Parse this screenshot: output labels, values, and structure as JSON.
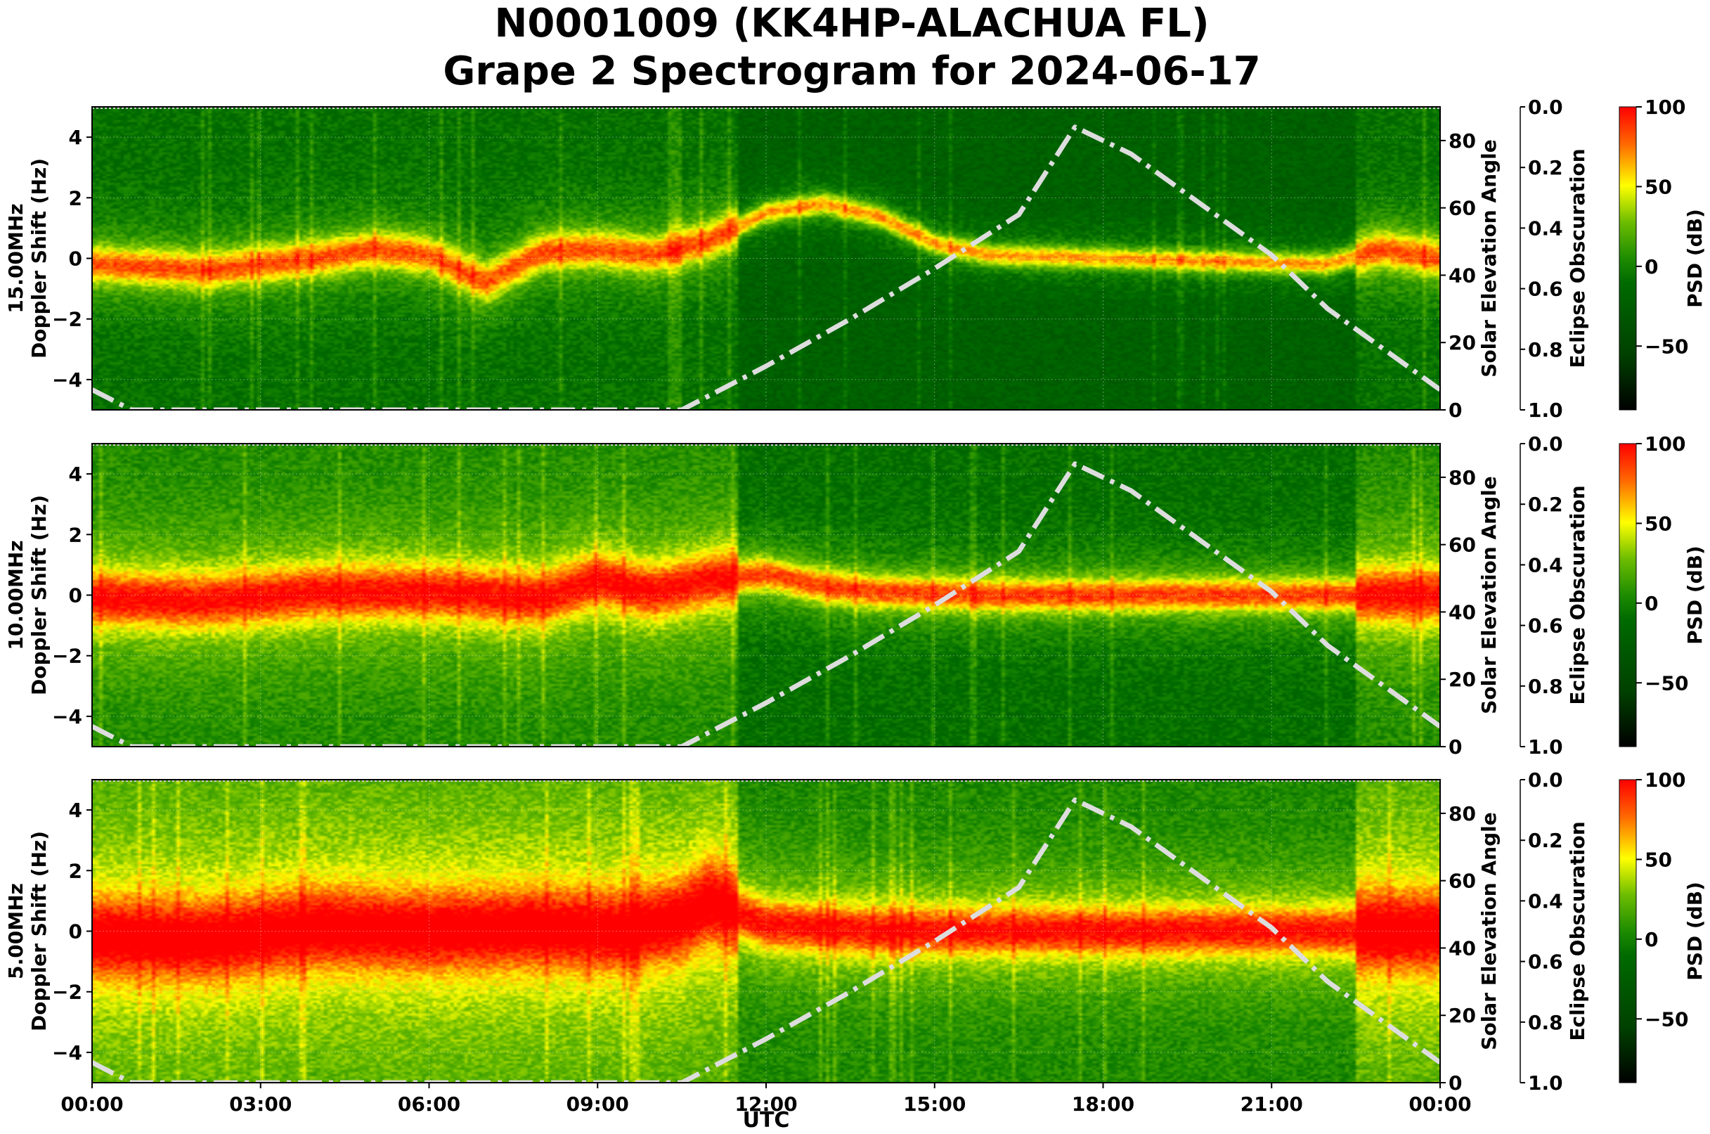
{
  "chart_data": {
    "type": "heatmap",
    "title_line1": "N0001009 (KK4HP-ALACHUA FL)",
    "title_line2": "Grape 2 Spectrogram for 2024-06-17",
    "xlabel": "UTC",
    "x_ticks": [
      "00:00",
      "03:00",
      "06:00",
      "09:00",
      "12:00",
      "15:00",
      "18:00",
      "21:00",
      "00:00"
    ],
    "x_range_hours": [
      0,
      24
    ],
    "doppler_range_hz": [
      -5,
      5
    ],
    "doppler_ticks": [
      4,
      2,
      0,
      -2,
      -4
    ],
    "doppler_tick_labels": [
      "4",
      "2",
      "0",
      "−2",
      "−4"
    ],
    "solar_ylabel": "Solar Elevation Angle",
    "solar_range_deg": [
      0,
      90
    ],
    "solar_ticks": [
      0,
      20,
      40,
      60,
      80
    ],
    "solar_tick_labels": [
      "0",
      "20",
      "40",
      "60",
      "80"
    ],
    "eclipse_label": "Eclipse Obscuration",
    "eclipse_ticks": [
      0.0,
      0.2,
      0.4,
      0.6,
      0.8,
      1.0
    ],
    "eclipse_tick_labels": [
      "0.0",
      "0.2",
      "0.4",
      "0.6",
      "0.8",
      "1.0"
    ],
    "psd_label": "PSD (dB)",
    "psd_range_db": [
      -90,
      100
    ],
    "psd_ticks": [
      100,
      50,
      0,
      -50
    ],
    "psd_tick_labels": [
      "100",
      "50",
      "0",
      "−50"
    ],
    "solar_elevation_curve": {
      "style": "dash-dot",
      "color": "#dddddd",
      "points": [
        [
          0.0,
          6
        ],
        [
          0.7,
          0
        ],
        [
          10.5,
          0
        ],
        [
          12,
          13
        ],
        [
          13.5,
          27
        ],
        [
          15,
          42
        ],
        [
          16.5,
          58
        ],
        [
          17.5,
          84
        ],
        [
          18.5,
          76
        ],
        [
          20,
          58
        ],
        [
          21,
          46
        ],
        [
          22,
          30
        ],
        [
          23,
          18
        ],
        [
          24,
          6
        ]
      ]
    },
    "colormap": [
      "#000000",
      "#004000",
      "#006b00",
      "#1e8c00",
      "#6dbd00",
      "#ffff00",
      "#ff6600",
      "#ff0000"
    ],
    "panels": [
      {
        "name": "15MHz",
        "ylabel_line1": "15.00MHz",
        "ylabel_line2": "Doppler Shift (Hz)",
        "background_db": -8,
        "ridge": [
          [
            0,
            -0.2
          ],
          [
            2,
            -0.4
          ],
          [
            4,
            0.0
          ],
          [
            5,
            0.3
          ],
          [
            6,
            0.1
          ],
          [
            7,
            -0.8
          ],
          [
            8,
            0.2
          ],
          [
            9,
            0.3
          ],
          [
            10,
            0.1
          ],
          [
            11,
            0.6
          ],
          [
            12,
            1.5
          ],
          [
            13,
            1.8
          ],
          [
            14,
            1.4
          ],
          [
            15,
            0.5
          ],
          [
            16,
            0.1
          ],
          [
            18,
            0.0
          ],
          [
            20,
            -0.1
          ],
          [
            22,
            -0.2
          ],
          [
            23,
            0.3
          ],
          [
            24,
            0.0
          ]
        ],
        "ridge_peak_db": 62,
        "spread_hz": 1.2
      },
      {
        "name": "10MHz",
        "ylabel_line1": "10.00MHz",
        "ylabel_line2": "Doppler Shift (Hz)",
        "background_db": 5,
        "ridge": [
          [
            0,
            -0.1
          ],
          [
            2,
            -0.2
          ],
          [
            4,
            0.1
          ],
          [
            6,
            0.1
          ],
          [
            8,
            -0.1
          ],
          [
            9,
            0.5
          ],
          [
            10,
            0.1
          ],
          [
            11,
            0.5
          ],
          [
            12,
            0.7
          ],
          [
            13,
            0.3
          ],
          [
            14,
            0.1
          ],
          [
            16,
            0.0
          ],
          [
            20,
            0.0
          ],
          [
            24,
            0.0
          ]
        ],
        "ridge_peak_db": 75,
        "spread_hz": 1.8
      },
      {
        "name": "5MHz",
        "ylabel_line1": "5.00MHz",
        "ylabel_line2": "Doppler Shift (Hz)",
        "background_db": 18,
        "ridge": [
          [
            0,
            -0.2
          ],
          [
            2,
            -0.3
          ],
          [
            4,
            0.1
          ],
          [
            6,
            0.0
          ],
          [
            8,
            0.1
          ],
          [
            9.5,
            0.0
          ],
          [
            10.5,
            0.4
          ],
          [
            11,
            1.0
          ],
          [
            12,
            0.2
          ],
          [
            14,
            0.0
          ],
          [
            24,
            0.0
          ]
        ],
        "ridge_peak_db": 85,
        "spread_hz": 2.6
      }
    ]
  }
}
